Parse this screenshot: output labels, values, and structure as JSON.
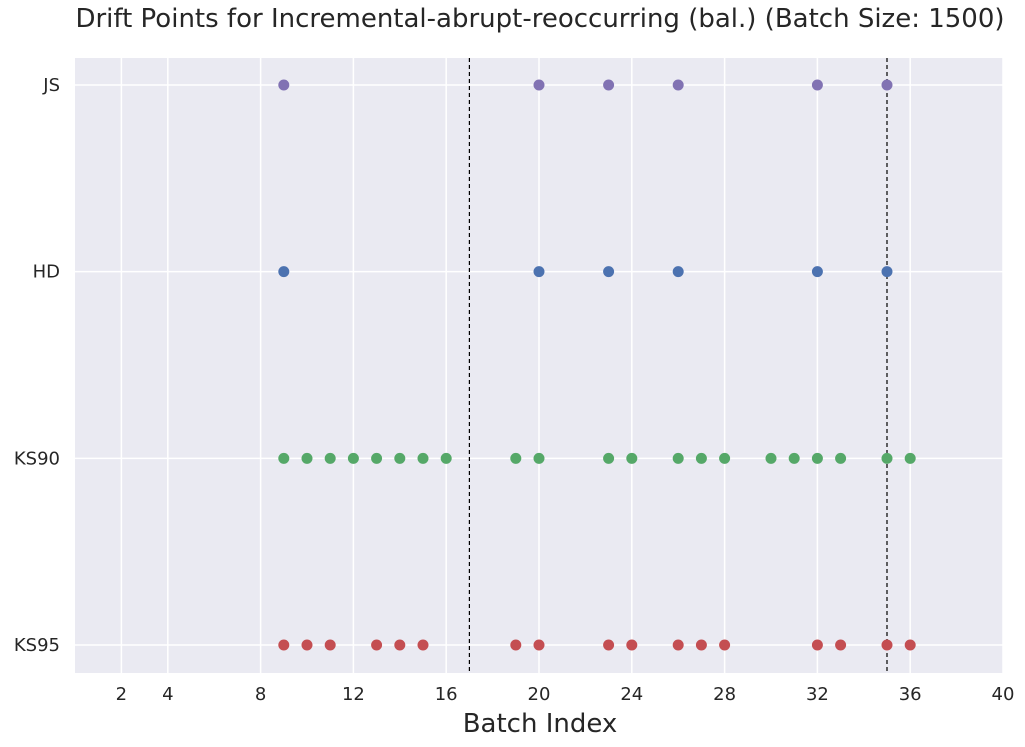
{
  "chart_data": {
    "type": "scatter",
    "title": "Drift Points for Incremental-abrupt-reoccurring (bal.) (Batch Size: 1500)",
    "xlabel": "Batch Index",
    "ylabel": "",
    "xlim": [
      0,
      40
    ],
    "xticks": [
      2,
      4,
      8,
      12,
      16,
      20,
      24,
      28,
      32,
      36,
      40
    ],
    "categories": [
      "KS95",
      "KS90",
      "HD",
      "JS"
    ],
    "grid": true,
    "background": "#eaeaf2",
    "vlines": [
      17,
      35
    ],
    "series": [
      {
        "name": "JS",
        "color": "#8172b3",
        "x": [
          9,
          20,
          23,
          26,
          32,
          35
        ]
      },
      {
        "name": "HD",
        "color": "#4c72b0",
        "x": [
          9,
          20,
          23,
          26,
          32,
          35
        ]
      },
      {
        "name": "KS90",
        "color": "#55a868",
        "x": [
          9,
          10,
          11,
          12,
          13,
          14,
          15,
          16,
          19,
          20,
          23,
          24,
          26,
          27,
          28,
          30,
          31,
          32,
          33,
          35,
          36
        ]
      },
      {
        "name": "KS95",
        "color": "#c44e52",
        "x": [
          9,
          10,
          11,
          13,
          14,
          15,
          19,
          20,
          23,
          24,
          26,
          27,
          28,
          32,
          33,
          35,
          36
        ]
      }
    ]
  }
}
